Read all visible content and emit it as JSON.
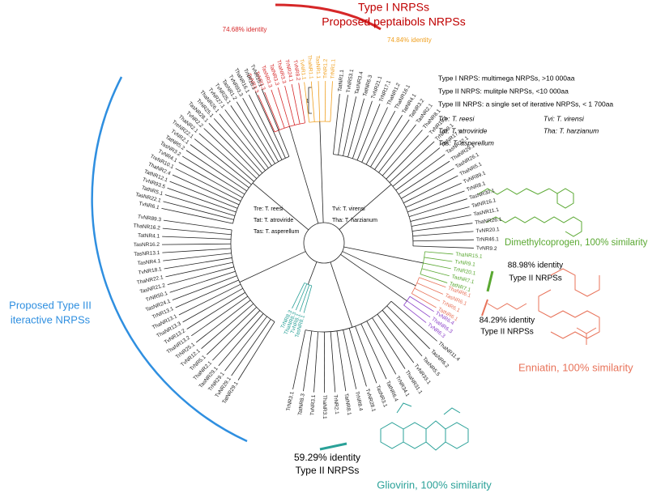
{
  "header": {
    "line1": "Type I NRPSs",
    "line2": "Proposed peptaibols NRPSs"
  },
  "top_identities": [
    {
      "text": "74.68% identity",
      "color": "#d62728"
    },
    {
      "text": "74.84% identity",
      "color": "#f0a020"
    }
  ],
  "marker": "1",
  "legend": {
    "types": [
      "Type I   NRPS: multimega NRPSs, >10 000aa",
      "Type II  NRPS: mulitple NRPSs, <10 000aa",
      "Type III NRPS: a single set of iterative NRPSs, < 1 700aa"
    ],
    "species": [
      "Tre: T. reesi",
      "Tvi: T. virensi",
      "Tat: T. atroviride",
      "Tha: T. harzianum",
      "Tas: T. asperellum"
    ]
  },
  "center_key": [
    "Tre: T. reesi",
    "Tat: T. atroviride",
    "Tas: T. asperellum",
    "Tvi: T. virensi",
    "Tha: T. harzianum"
  ],
  "annotations": {
    "dimethylcoprogen": "Dimethylcoprogen, 100% similarity",
    "identity_8898": [
      "88.98% identity",
      "Type II NRPSs"
    ],
    "identity_8429": [
      "84.29% identity",
      "Type II NRPSs"
    ],
    "enniatin": "Enniatin, 100% similarity",
    "type3": [
      "Proposed Type III",
      "iteractive NRPSs"
    ],
    "identity_5929": [
      "59.29% identity",
      "Type II NRPSs"
    ],
    "gliovirin": "Gliovirin,  100% similarity"
  },
  "clades": [
    {
      "color": "#d62728",
      "labels": [
        "TvNR3.3",
        "TrNR3.3",
        "TasNR3.3",
        "TatNR3.3",
        "ThaNR3.3",
        "TrNR24.1",
        "TvNR8.2"
      ]
    },
    {
      "color": "#f0a020",
      "labels": [
        "TvNR1.1",
        "ThaNR1.1",
        "TasNR1.1",
        "TrNR1.2",
        "TrNR1.1"
      ]
    },
    {
      "color": "#222222",
      "labels": [
        "TatNR1.1",
        "TvNR53.1",
        "TasNR3.4",
        "TatNR6.3",
        "TvNR21.1",
        "TrNR17.1",
        "ThaNR1.2",
        "ThaNR16.1",
        "TatNR4.1",
        "TatNR3.2",
        "TasNR2.1",
        "ThaNR8.1",
        "TvNR10.1",
        "TrNR19.1",
        "TatNR17.1",
        "TasNR32.1",
        "ThaNR29.1",
        "TasNR26.1",
        "ThaNR5.1",
        "TvNR89.1",
        "TrNR8.1",
        "TasNR30.1",
        "TatNR16.1",
        "TasNR11.1",
        "ThaNR26.1",
        "TvNR20.1",
        "TrNR46.1",
        "TvNR9.2"
      ]
    },
    {
      "color": "#5aa832",
      "labels": [
        "ThaNR15.1",
        "TvNR9.1",
        "TrNR20.1",
        "TasNR7.1",
        "TatNR7.1"
      ]
    },
    {
      "color": "#e8735a",
      "labels": [
        "ThaNR6.1",
        "TasNR6.1",
        "TrNR6.1",
        "TatNR6.1"
      ]
    },
    {
      "color": "#8a3fc8",
      "labels": [
        "TvNR6.4",
        "ThaNR6.3",
        "TvNR6.3"
      ]
    },
    {
      "color": "#222222",
      "labels": [
        "ThaNR11.4",
        "TasNR6.2",
        "TasNR5.5",
        "TvNR33.1",
        "ThaNR31.1",
        "TrNR34.1",
        "TatNR6.4",
        "TasNR3.1",
        "TvNR28.1",
        "TrNR8.4",
        "TatNR8.1",
        "TrNR2.1",
        "ThaNR3.1",
        "TvNR3.1",
        "TatNR8.3",
        "TrNR3.1"
      ]
    },
    {
      "color": "#2aa198",
      "labels": [
        "TasNR8.1",
        "TvNR8.1",
        "ThaNR8.3",
        "TrNR8.3"
      ]
    },
    {
      "color": "#222222",
      "labels": [
        "TatNR29.1",
        "TvNR29.1",
        "TrNR29.1",
        "TasNR29.1",
        "ThaNR2.1",
        "TrNR5.1",
        "TvNR12.1",
        "TrNR25.1",
        "ThaNR13.2",
        "TvNR13.2",
        "ThaNR13.3",
        "ThaNR13.1",
        "TrNR13.1",
        "TasNR24.1",
        "TrNR50.1",
        "TasNR21.2",
        "ThaNR22.1",
        "TvNR18.1",
        "TasNR4.1",
        "TasNR13.1",
        "TasNR16.2",
        "TatNR4.1",
        "ThaNR16.2",
        "TvNR89.3"
      ]
    },
    {
      "color": "#222222",
      "labels": [
        "TvNR6.1",
        "TasNR22.1",
        "TatNR5.1",
        "TvNR93.5",
        "TatNR12.1",
        "ThaNR2.4",
        "TreNR10.1",
        "TvNR4.1",
        "TasNR3.2",
        "TatNR5.2",
        "TvNR2.1",
        "TreNR22.1",
        "ThaNR2.1",
        "TvNR2.2",
        "TasNR28.1",
        "TrNR25.1",
        "ThaNR26.1",
        "TvNR27.1",
        "TvNR25.1",
        "TasNR1.2",
        "TvNR93.3",
        "ThaNR16.1",
        "TrNR16.1",
        "TvNR15.1"
      ]
    }
  ]
}
